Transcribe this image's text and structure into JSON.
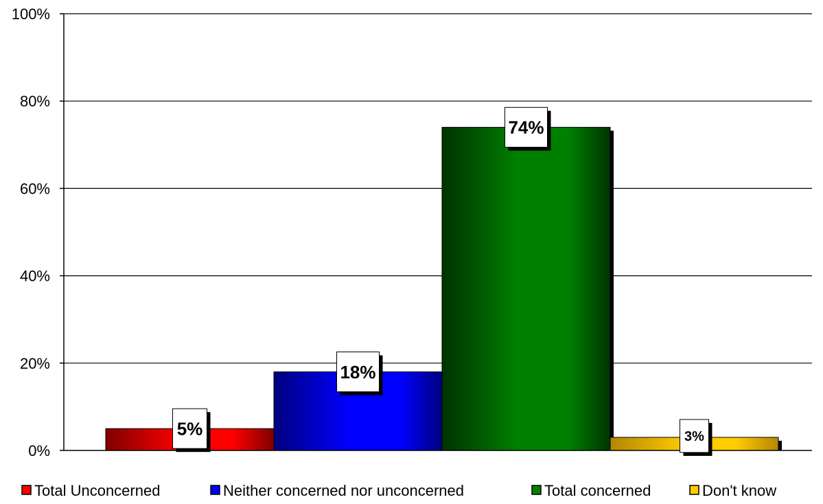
{
  "chart_data": {
    "type": "bar",
    "categories": [
      "Total Unconcerned",
      "Neither concerned nor unconcerned",
      "Total concerned",
      "Don't know"
    ],
    "values": [
      5,
      18,
      74,
      3
    ],
    "value_labels": [
      "5%",
      "18%",
      "74%",
      "3%"
    ],
    "colors": [
      "#ff0000",
      "#0000ff",
      "#008000",
      "#ffcc00"
    ],
    "shade_colors": [
      "#800000",
      "#000080",
      "#003300",
      "#b38600"
    ],
    "ylim": [
      0,
      100
    ],
    "yticks": [
      0,
      20,
      40,
      60,
      80,
      100
    ],
    "ytick_labels": [
      "0%",
      "20%",
      "40%",
      "60%",
      "80%",
      "100%"
    ],
    "grid": true,
    "legend_position": "bottom",
    "title": "",
    "xlabel": "",
    "ylabel": ""
  }
}
